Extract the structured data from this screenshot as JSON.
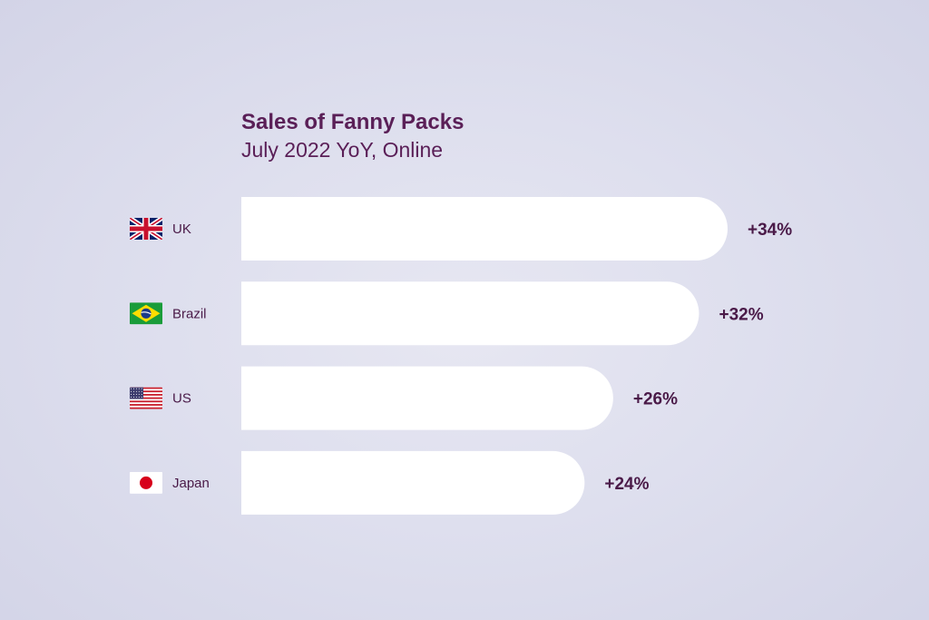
{
  "chart_data": {
    "type": "bar",
    "orientation": "horizontal",
    "title": "Sales of Fanny Packs",
    "subtitle": "July 2022 YoY, Online",
    "categories": [
      "UK",
      "Brazil",
      "US",
      "Japan"
    ],
    "flags": [
      "uk-flag-icon",
      "brazil-flag-icon",
      "us-flag-icon",
      "japan-flag-icon"
    ],
    "values": [
      34,
      32,
      26,
      24
    ],
    "value_labels": [
      "+34%",
      "+32%",
      "+26%",
      "+24%"
    ],
    "unit": "%",
    "xlim": [
      0,
      34
    ],
    "grid": false,
    "legend": "none",
    "colors": {
      "bar": "#ffffff",
      "text": "#5a1f57",
      "background": "#dedfee"
    }
  }
}
